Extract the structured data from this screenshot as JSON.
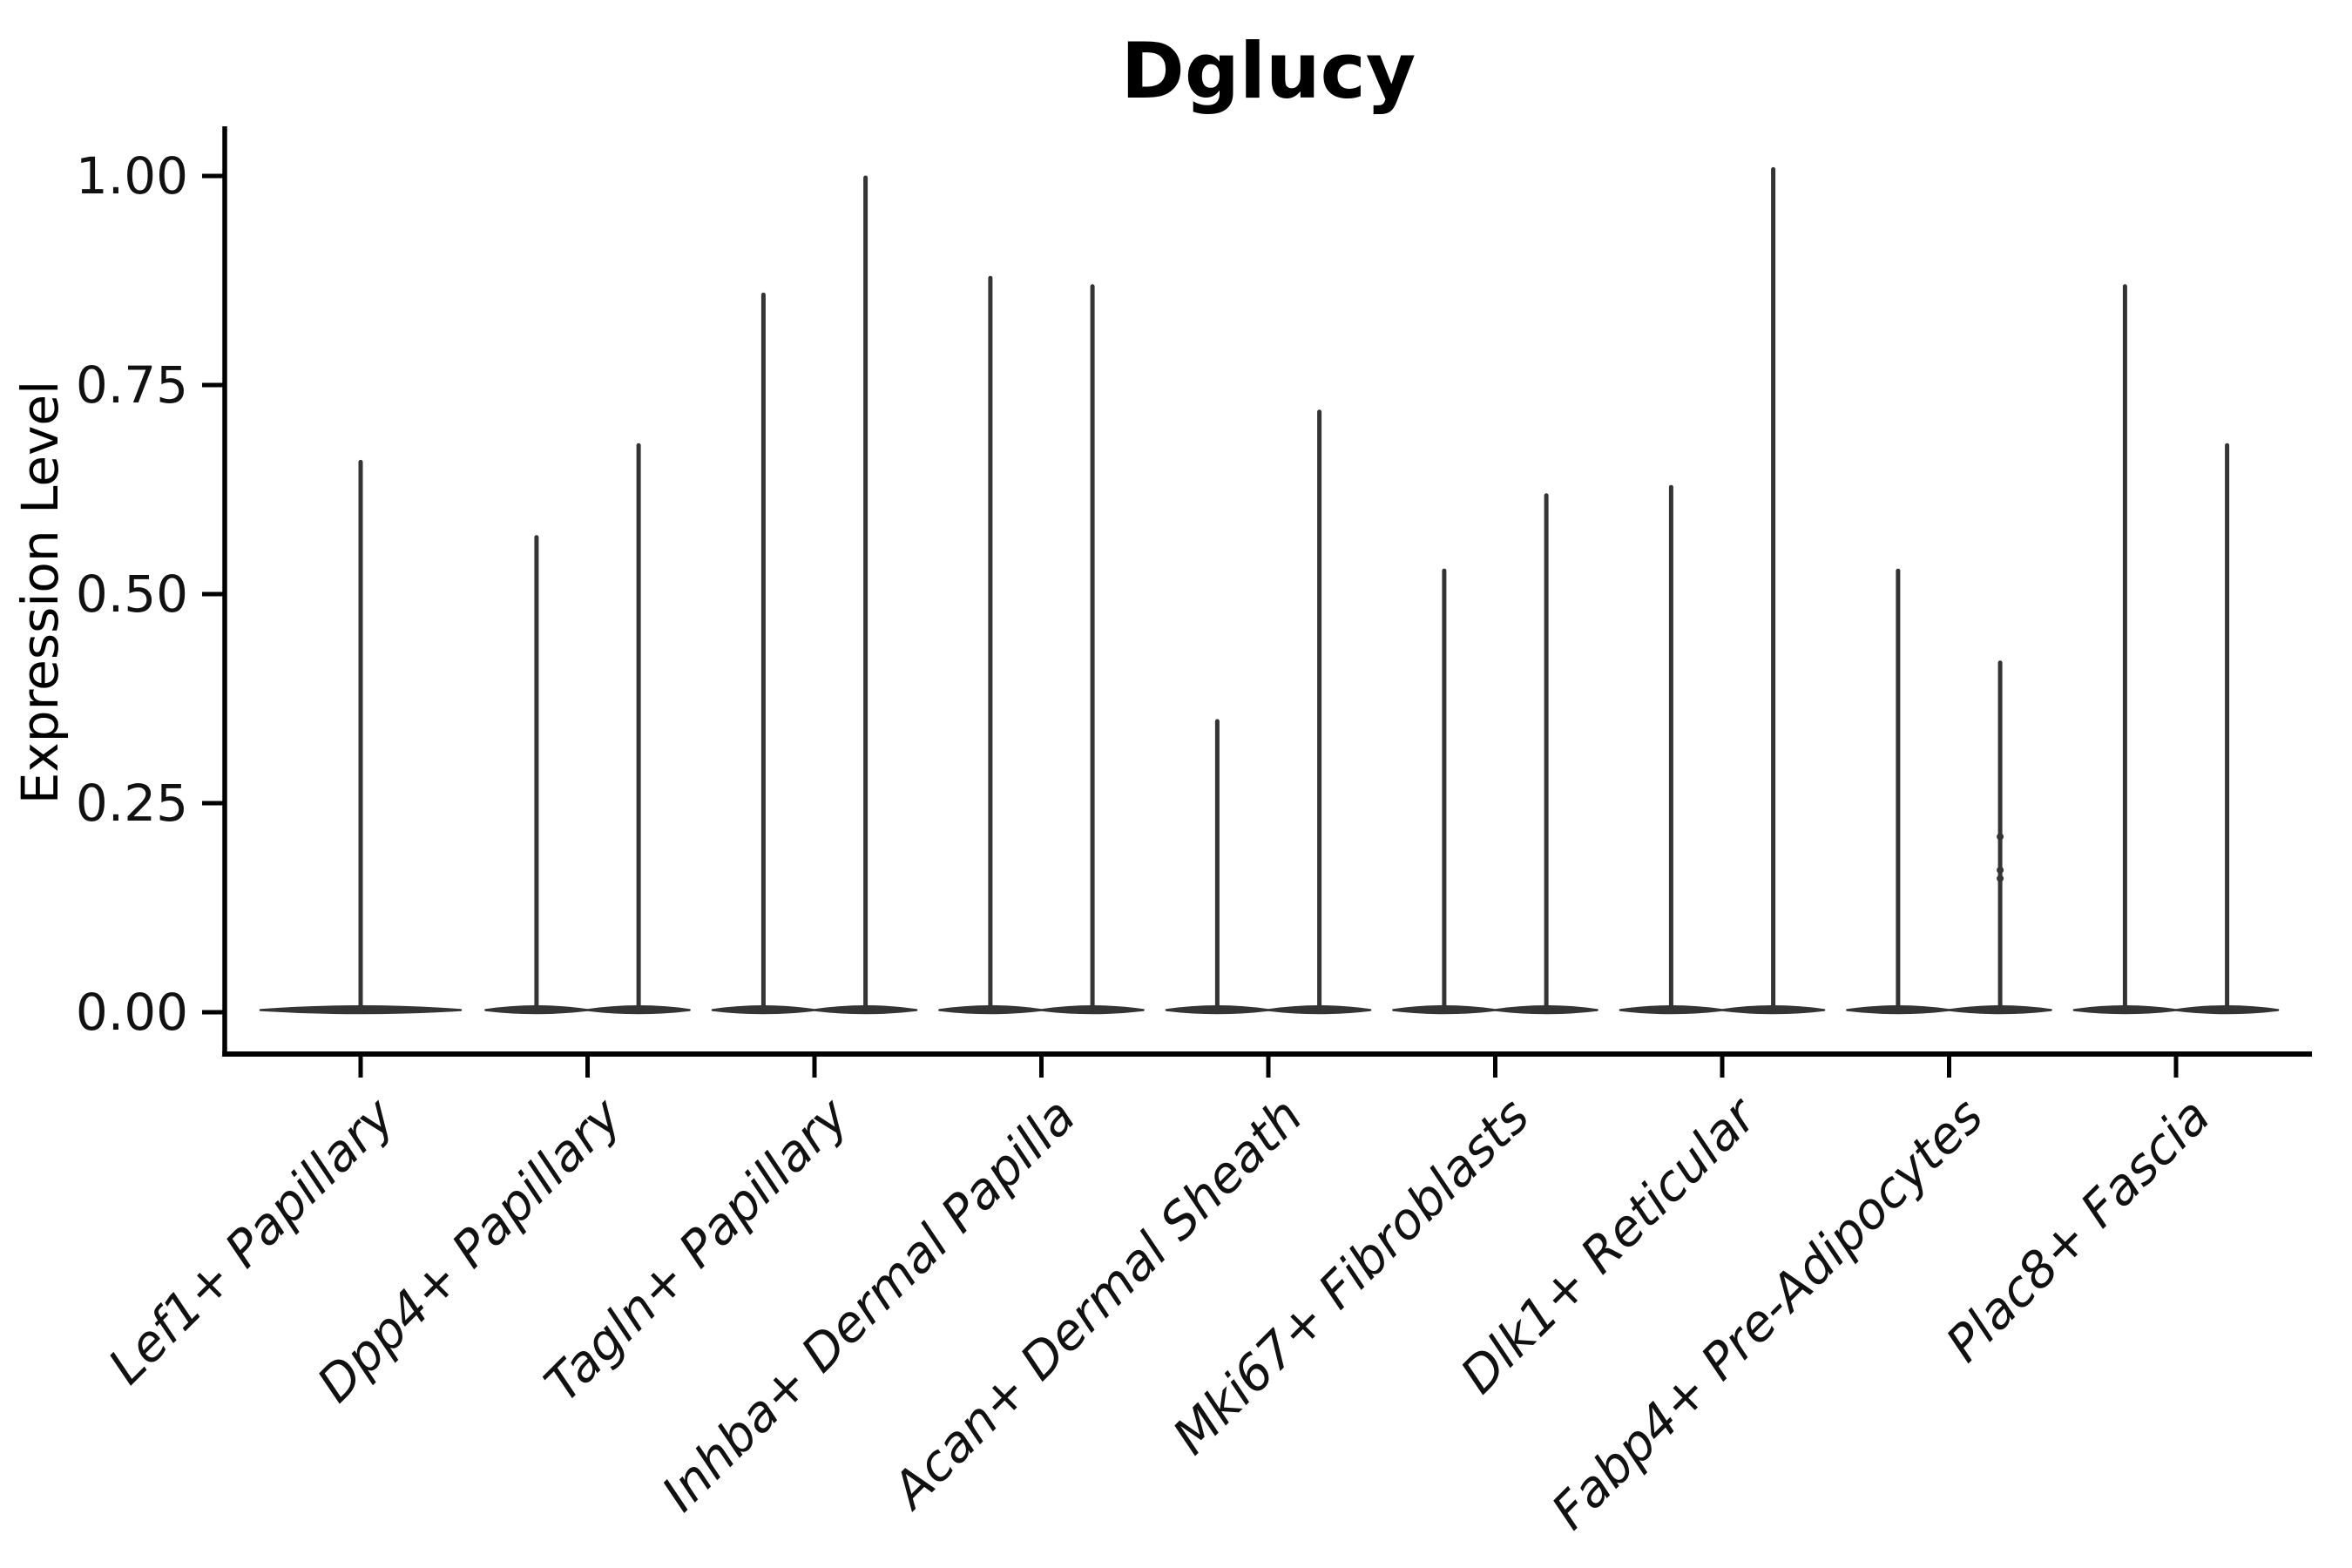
{
  "chart_data": {
    "type": "violin",
    "title": "Dglucy",
    "ylabel": "Expression Level",
    "xlabel": "",
    "ylim": [
      -0.05,
      1.06
    ],
    "yticks": [
      0,
      0.25,
      0.5,
      0.75,
      1.0
    ],
    "ytick_labels": [
      "0.00",
      "0.25",
      "0.50",
      "0.75",
      "1.00"
    ],
    "grid": false,
    "legend": "none",
    "categories": [
      "Lef1+ Papillary",
      "Dpp4+ Papillary",
      "Tagln+ Papillary",
      "Inhba+ Dermal Papilla",
      "Acan+ Dermal Sheath",
      "Mki67+ Fibroblasts",
      "Dlk1+ Reticular",
      "Fabp4+ Pre-Adipocytes",
      "Plac8+ Fascia"
    ],
    "violins": [
      {
        "category": "Lef1+ Papillary",
        "violins": [
          {
            "slot": "full",
            "max": 0.66
          }
        ]
      },
      {
        "category": "Dpp4+ Papillary",
        "violins": [
          {
            "slot": "left",
            "max": 0.57
          },
          {
            "slot": "right",
            "max": 0.68
          }
        ]
      },
      {
        "category": "Tagln+ Papillary",
        "violins": [
          {
            "slot": "left",
            "max": 0.86
          },
          {
            "slot": "right",
            "max": 1.0
          }
        ]
      },
      {
        "category": "Inhba+ Dermal Papilla",
        "violins": [
          {
            "slot": "left",
            "max": 0.88
          },
          {
            "slot": "right",
            "max": 0.87
          }
        ]
      },
      {
        "category": "Acan+ Dermal Sheath",
        "violins": [
          {
            "slot": "left",
            "max": 0.35
          },
          {
            "slot": "right",
            "max": 0.72
          }
        ]
      },
      {
        "category": "Mki67+ Fibroblasts",
        "violins": [
          {
            "slot": "left",
            "max": 0.53
          },
          {
            "slot": "right",
            "max": 0.62
          }
        ]
      },
      {
        "category": "Dlk1+ Reticular",
        "violins": [
          {
            "slot": "left",
            "max": 0.63
          },
          {
            "slot": "right",
            "max": 1.01
          }
        ]
      },
      {
        "category": "Fabp4+ Pre-Adipocytes",
        "violins": [
          {
            "slot": "left",
            "max": 0.53
          },
          {
            "slot": "right",
            "max": 0.42,
            "points": [
              0.21,
              0.17,
              0.16
            ]
          }
        ]
      },
      {
        "category": "Plac8+ Fascia",
        "violins": [
          {
            "slot": "left",
            "max": 0.87
          },
          {
            "slot": "right",
            "max": 0.68
          }
        ]
      }
    ],
    "description": "Violin plot of expression; density collapsed at 0 with thin spike to maximum per group. Two grouped violins per category except Lef1+ Papillary (single full-width violin).",
    "colors": {
      "violin": "#343434",
      "axis": "#000000",
      "text": "#000000",
      "background": "#ffffff"
    }
  }
}
